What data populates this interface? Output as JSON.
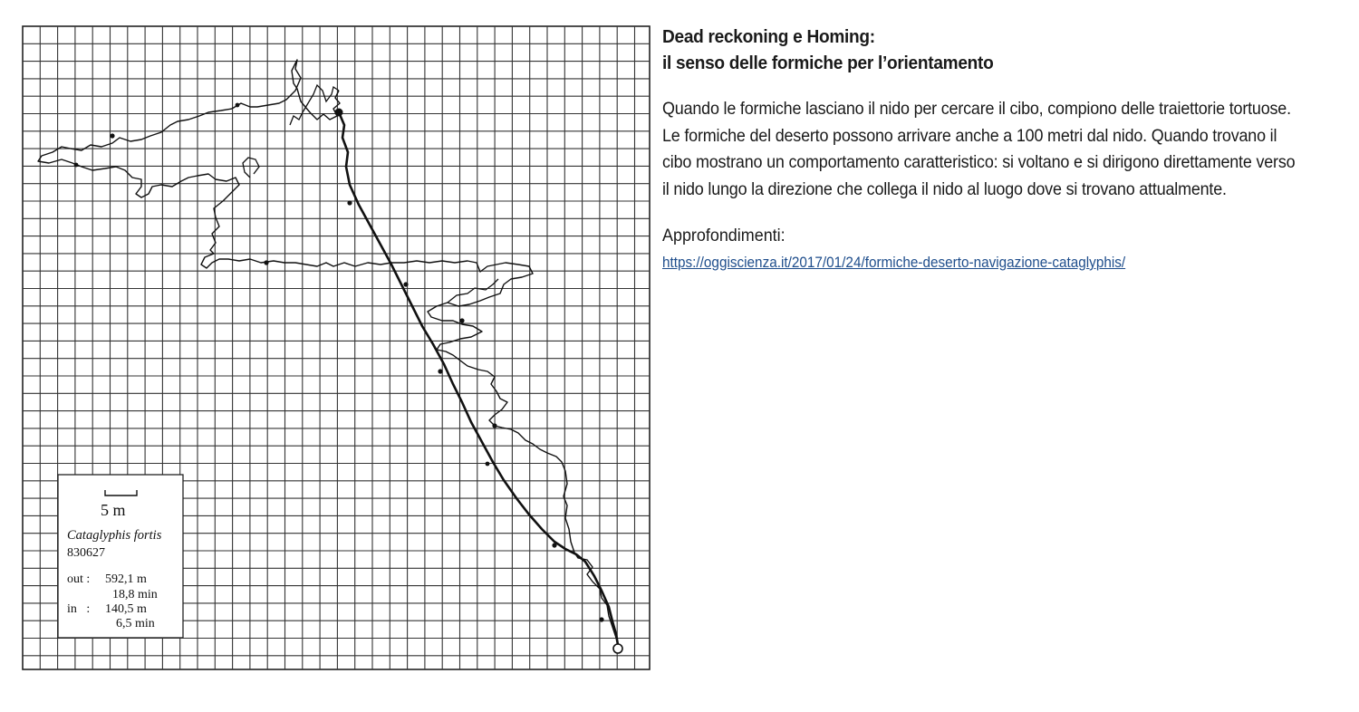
{
  "figure": {
    "scale_bar_label": "5 m",
    "species": "Cataglyphis fortis",
    "record_id": "830627",
    "out_label": "out :",
    "out_distance": "592,1 m",
    "out_time": "18,8 min",
    "in_label": "in   :",
    "in_distance": "140,5 m",
    "in_time": "6,5 min"
  },
  "text": {
    "title_line1": "Dead reckoning e Homing:",
    "title_line2": "il senso delle formiche per l’orientamento",
    "paragraph": "Quando le formiche lasciano il nido per cercare il cibo, compiono delle traiettorie tortuose. Le formiche del deserto possono arrivare anche a 100 metri dal nido. Quando trovano il cibo mostrano un comportamento caratteristico: si voltano e si dirigono direttamente verso il nido lungo la direzione che collega il nido al luogo dove si trovano attualmente.",
    "further_label": "Approfondimenti:",
    "link_text": "https://oggiscienza.it/2017/01/24/formiche-deserto-navigazione-cataglyphis/"
  }
}
